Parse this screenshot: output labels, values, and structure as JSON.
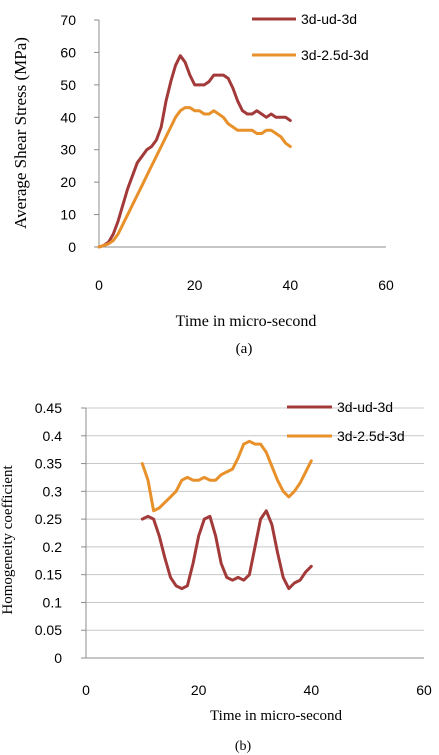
{
  "chart_data": [
    {
      "type": "line",
      "title": "",
      "panel_label": "(a)",
      "xlabel": "Time in micro-second",
      "ylabel": "Average Shear Stress (MPa)",
      "xlim": [
        0,
        60
      ],
      "ylim": [
        0,
        70
      ],
      "x_ticks": [
        0,
        20,
        40,
        60
      ],
      "y_ticks": [
        0,
        10,
        20,
        30,
        40,
        50,
        60,
        70
      ],
      "grid": false,
      "legend_position": "top-right",
      "series": [
        {
          "name": "3d-ud-3d",
          "color": "#a33a3a",
          "points": [
            [
              0,
              0
            ],
            [
              1,
              0.5
            ],
            [
              2,
              1.5
            ],
            [
              3,
              4
            ],
            [
              4,
              8
            ],
            [
              5,
              13
            ],
            [
              6,
              18
            ],
            [
              7,
              22
            ],
            [
              8,
              26
            ],
            [
              9,
              28
            ],
            [
              10,
              30
            ],
            [
              11,
              31
            ],
            [
              12,
              33
            ],
            [
              13,
              37
            ],
            [
              14,
              45
            ],
            [
              15,
              51
            ],
            [
              16,
              56
            ],
            [
              17,
              59
            ],
            [
              18,
              57
            ],
            [
              19,
              53
            ],
            [
              20,
              50
            ],
            [
              21,
              50
            ],
            [
              22,
              50
            ],
            [
              23,
              51
            ],
            [
              24,
              53
            ],
            [
              25,
              53
            ],
            [
              26,
              53
            ],
            [
              27,
              52
            ],
            [
              28,
              49
            ],
            [
              29,
              45
            ],
            [
              30,
              42
            ],
            [
              31,
              41
            ],
            [
              32,
              41
            ],
            [
              33,
              42
            ],
            [
              34,
              41
            ],
            [
              35,
              40
            ],
            [
              36,
              41
            ],
            [
              37,
              40
            ],
            [
              38,
              40
            ],
            [
              39,
              40
            ],
            [
              40,
              39
            ]
          ]
        },
        {
          "name": "3d-2.5d-3d",
          "color": "#e8902a",
          "points": [
            [
              0,
              0
            ],
            [
              2,
              1
            ],
            [
              3,
              2
            ],
            [
              4,
              4
            ],
            [
              5,
              7
            ],
            [
              6,
              10
            ],
            [
              7,
              13
            ],
            [
              8,
              16
            ],
            [
              9,
              19
            ],
            [
              10,
              22
            ],
            [
              11,
              25
            ],
            [
              12,
              28
            ],
            [
              13,
              31
            ],
            [
              14,
              34
            ],
            [
              15,
              37
            ],
            [
              16,
              40
            ],
            [
              17,
              42
            ],
            [
              18,
              43
            ],
            [
              19,
              43
            ],
            [
              20,
              42
            ],
            [
              21,
              42
            ],
            [
              22,
              41
            ],
            [
              23,
              41
            ],
            [
              24,
              42
            ],
            [
              25,
              41
            ],
            [
              26,
              40
            ],
            [
              27,
              38
            ],
            [
              28,
              37
            ],
            [
              29,
              36
            ],
            [
              30,
              36
            ],
            [
              31,
              36
            ],
            [
              32,
              36
            ],
            [
              33,
              35
            ],
            [
              34,
              35
            ],
            [
              35,
              36
            ],
            [
              36,
              36
            ],
            [
              37,
              35
            ],
            [
              38,
              34
            ],
            [
              39,
              32
            ],
            [
              40,
              31
            ]
          ]
        }
      ]
    },
    {
      "type": "line",
      "title": "",
      "panel_label": "(b)",
      "xlabel": "Time in micro-second",
      "ylabel": "Homogeneity coefficient",
      "xlim": [
        0,
        60
      ],
      "ylim": [
        0,
        0.45
      ],
      "x_ticks": [
        0,
        20,
        40,
        60
      ],
      "y_ticks": [
        0,
        0.05,
        0.1,
        0.15,
        0.2,
        0.25,
        0.3,
        0.35,
        0.4,
        0.45
      ],
      "grid": true,
      "legend_position": "top-right",
      "series": [
        {
          "name": "3d-ud-3d",
          "color": "#a33a3a",
          "points": [
            [
              10,
              0.25
            ],
            [
              11,
              0.255
            ],
            [
              12,
              0.25
            ],
            [
              13,
              0.22
            ],
            [
              14,
              0.18
            ],
            [
              15,
              0.145
            ],
            [
              16,
              0.13
            ],
            [
              17,
              0.125
            ],
            [
              18,
              0.13
            ],
            [
              19,
              0.17
            ],
            [
              20,
              0.22
            ],
            [
              21,
              0.25
            ],
            [
              22,
              0.255
            ],
            [
              23,
              0.22
            ],
            [
              24,
              0.17
            ],
            [
              25,
              0.145
            ],
            [
              26,
              0.14
            ],
            [
              27,
              0.145
            ],
            [
              28,
              0.14
            ],
            [
              29,
              0.15
            ],
            [
              30,
              0.2
            ],
            [
              31,
              0.25
            ],
            [
              32,
              0.265
            ],
            [
              33,
              0.24
            ],
            [
              34,
              0.19
            ],
            [
              35,
              0.145
            ],
            [
              36,
              0.125
            ],
            [
              37,
              0.135
            ],
            [
              38,
              0.14
            ],
            [
              39,
              0.155
            ],
            [
              40,
              0.165
            ]
          ]
        },
        {
          "name": "3d-2.5d-3d",
          "color": "#e8902a",
          "points": [
            [
              10,
              0.35
            ],
            [
              11,
              0.32
            ],
            [
              12,
              0.265
            ],
            [
              13,
              0.27
            ],
            [
              14,
              0.28
            ],
            [
              15,
              0.29
            ],
            [
              16,
              0.3
            ],
            [
              17,
              0.32
            ],
            [
              18,
              0.325
            ],
            [
              19,
              0.32
            ],
            [
              20,
              0.32
            ],
            [
              21,
              0.325
            ],
            [
              22,
              0.32
            ],
            [
              23,
              0.32
            ],
            [
              24,
              0.33
            ],
            [
              25,
              0.335
            ],
            [
              26,
              0.34
            ],
            [
              27,
              0.36
            ],
            [
              28,
              0.385
            ],
            [
              29,
              0.39
            ],
            [
              30,
              0.385
            ],
            [
              31,
              0.385
            ],
            [
              32,
              0.37
            ],
            [
              33,
              0.345
            ],
            [
              34,
              0.32
            ],
            [
              35,
              0.3
            ],
            [
              36,
              0.29
            ],
            [
              37,
              0.3
            ],
            [
              38,
              0.315
            ],
            [
              39,
              0.335
            ],
            [
              40,
              0.355
            ]
          ]
        }
      ]
    }
  ]
}
